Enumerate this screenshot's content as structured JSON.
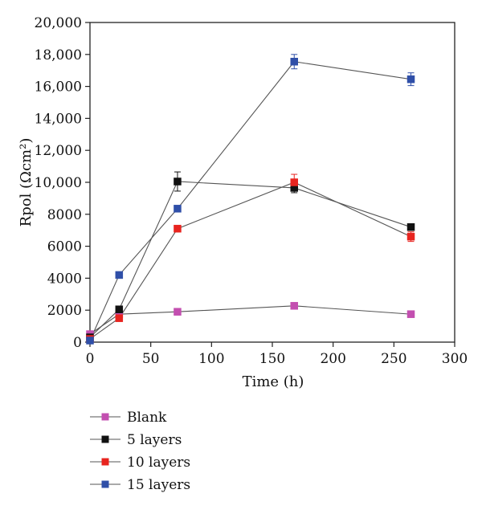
{
  "chart_data": {
    "type": "line",
    "title": "",
    "xlabel": "Time (h)",
    "ylabel": "Rpol (Ωcm²)",
    "xlim": [
      0,
      300
    ],
    "ylim": [
      0,
      20000
    ],
    "x_ticks": [
      0,
      50,
      100,
      150,
      200,
      250,
      300
    ],
    "x_tick_labels": [
      "0",
      "50",
      "100",
      "150",
      "200",
      "250",
      "300"
    ],
    "y_ticks": [
      0,
      2000,
      4000,
      6000,
      8000,
      10000,
      12000,
      14000,
      16000,
      18000,
      20000
    ],
    "y_tick_labels": [
      "0",
      "2000",
      "4000",
      "6000",
      "8000",
      "10,000",
      "12,000",
      "14,000",
      "16,000",
      "18,000",
      "20,000"
    ],
    "grid": false,
    "legend_position": "below",
    "x": [
      0,
      24,
      72,
      168,
      264
    ],
    "series": [
      {
        "name": "Blank",
        "color": "#c34fb0",
        "values": [
          500,
          1750,
          1900,
          2270,
          1750
        ],
        "errors": [
          0,
          0,
          0,
          0,
          0
        ]
      },
      {
        "name": "5 layers",
        "color": "#111111",
        "values": [
          300,
          2050,
          10050,
          9650,
          7200
        ],
        "errors": [
          0,
          0,
          600,
          300,
          200
        ]
      },
      {
        "name": "10 layers",
        "color": "#e8241f",
        "values": [
          200,
          1500,
          7100,
          10000,
          6600
        ],
        "errors": [
          0,
          0,
          0,
          500,
          300
        ]
      },
      {
        "name": "15 layers",
        "color": "#2f4fa8",
        "values": [
          100,
          4200,
          8350,
          17550,
          16450
        ],
        "errors": [
          0,
          0,
          150,
          450,
          400
        ]
      }
    ]
  }
}
